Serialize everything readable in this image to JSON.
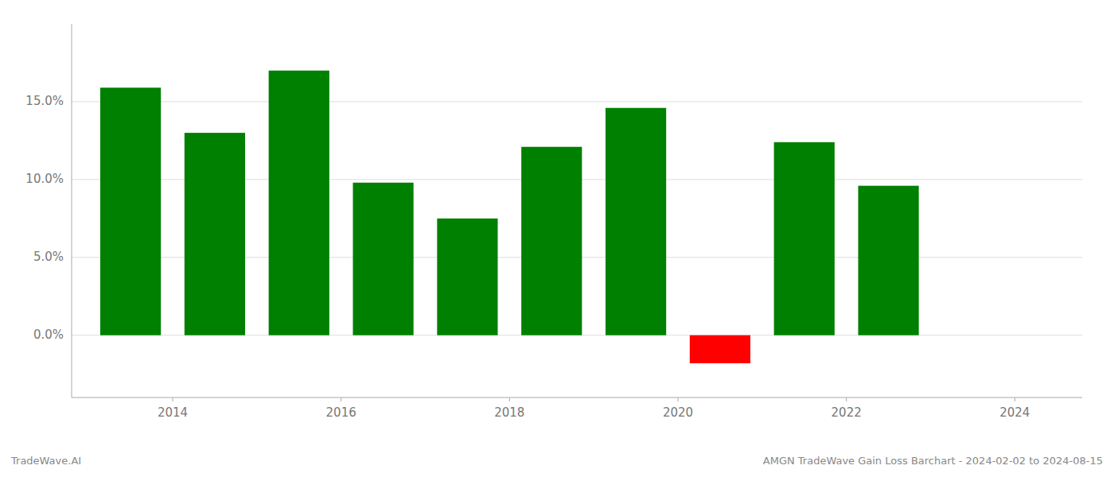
{
  "chart_data": {
    "type": "bar",
    "x": [
      2013.5,
      2014.5,
      2015.5,
      2016.5,
      2017.5,
      2018.5,
      2019.5,
      2020.5,
      2021.5,
      2022.5
    ],
    "values": [
      0.159,
      0.13,
      0.17,
      0.098,
      0.075,
      0.121,
      0.146,
      -0.018,
      0.124,
      0.096
    ],
    "colors": [
      "#008000",
      "#008000",
      "#008000",
      "#008000",
      "#008000",
      "#008000",
      "#008000",
      "#ff0000",
      "#008000",
      "#008000"
    ],
    "xlim": [
      2012.8,
      2024.8
    ],
    "xticks": [
      2014,
      2016,
      2018,
      2020,
      2022,
      2024
    ],
    "ylim": [
      -0.04,
      0.2
    ],
    "yticks": [
      {
        "value": 0.0,
        "label": "0.0%"
      },
      {
        "value": 0.05,
        "label": "5.0%"
      },
      {
        "value": 0.1,
        "label": "10.0%"
      },
      {
        "value": 0.15,
        "label": "15.0%"
      }
    ],
    "grid": true,
    "annotations": [
      "TradeWave.AI",
      "AMGN TradeWave Gain Loss Barchart - 2024-02-02 to 2024-08-15"
    ]
  }
}
